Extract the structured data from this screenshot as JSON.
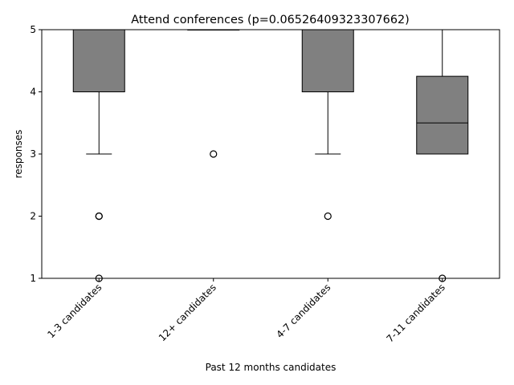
{
  "chart_data": {
    "type": "box",
    "title": "Attend conferences (p=0.06526409323307662)",
    "xlabel": "Past 12 months candidates",
    "ylabel": "responses",
    "ylim": [
      1,
      5
    ],
    "yticks": [
      "1",
      "2",
      "3",
      "4",
      "5"
    ],
    "grid": false,
    "categories": [
      "1-3 candidates",
      "12+ candidates",
      "4-7 candidates",
      "7-11 candidates"
    ],
    "boxes": [
      {
        "q1": 4,
        "median": 5,
        "q3": 5,
        "whisker_low": 3,
        "whisker_high": 5,
        "outliers": [
          2,
          2,
          1
        ]
      },
      {
        "q1": 5,
        "median": 5,
        "q3": 5,
        "whisker_low": 5,
        "whisker_high": 5,
        "outliers": [
          3
        ]
      },
      {
        "q1": 4,
        "median": 5,
        "q3": 5,
        "whisker_low": 3,
        "whisker_high": 5,
        "outliers": [
          2
        ]
      },
      {
        "q1": 3,
        "median": 3.5,
        "q3": 4.25,
        "whisker_low": 3,
        "whisker_high": 5,
        "outliers": [
          1
        ]
      }
    ],
    "box_color": "#808080"
  }
}
